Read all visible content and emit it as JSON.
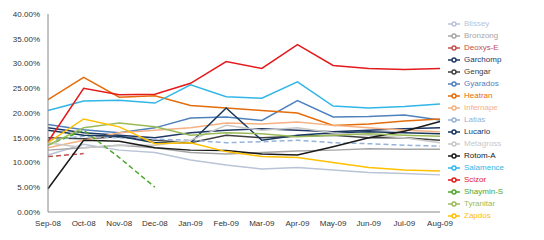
{
  "chart_data": {
    "type": "line",
    "categories": [
      "Sep-08",
      "Oct-08",
      "Nov-08",
      "Dec-08",
      "Jan-09",
      "Feb-09",
      "Mar-09",
      "Apr-09",
      "May-09",
      "Jun-09",
      "Jul-09",
      "Aug-09"
    ],
    "ylim": [
      0,
      40
    ],
    "yticks": [
      {
        "value": 0,
        "label": "0.00%"
      },
      {
        "value": 5,
        "label": "5.00%"
      },
      {
        "value": 10,
        "label": "10.00%"
      },
      {
        "value": 15,
        "label": "15.00%"
      },
      {
        "value": 20,
        "label": "20.00%"
      },
      {
        "value": 25,
        "label": "25.00%"
      },
      {
        "value": 30,
        "label": "30.00%"
      },
      {
        "value": 35,
        "label": "35.00%"
      },
      {
        "value": 40,
        "label": "40.00%"
      }
    ],
    "grid": false,
    "legend": "right",
    "series": [
      {
        "name": "Blissey",
        "color": "#b9c4d6",
        "values": [
          11.5,
          13.7,
          12.5,
          12,
          10.5,
          9.5,
          8.7,
          9,
          8.5,
          8,
          7.8,
          7.5
        ]
      },
      {
        "name": "Bronzong",
        "color": "#a6a6a6",
        "values": [
          12.5,
          13,
          13.5,
          13,
          12,
          11.7,
          12,
          12.3,
          12.5,
          12.8,
          12.7,
          12.7
        ]
      },
      {
        "name": "Deoxys-E",
        "color": "#c0504d",
        "line_style": "dashed",
        "values": [
          11.2,
          11.8,
          null,
          null,
          null,
          null,
          null,
          null,
          null,
          null,
          null,
          null
        ]
      },
      {
        "name": "Garchomp",
        "color": "#1f3864",
        "values": [
          17,
          16,
          15.5,
          15,
          16,
          16.5,
          16.8,
          16.5,
          16.2,
          16.5,
          16.8,
          17
        ]
      },
      {
        "name": "Gengar",
        "color": "#404040",
        "values": [
          15,
          14.8,
          15.2,
          14.5,
          14,
          15.5,
          15,
          15.3,
          15.5,
          15,
          15,
          14.5
        ]
      },
      {
        "name": "Gyarados",
        "color": "#4f81bd",
        "values": [
          17.7,
          16.6,
          16,
          17,
          19,
          19.2,
          18.5,
          22.5,
          19.2,
          19.3,
          19.6,
          18.6
        ]
      },
      {
        "name": "Heatran",
        "color": "#e46c0a",
        "values": [
          22.7,
          27.2,
          23.2,
          23.5,
          21.5,
          21,
          20.5,
          20,
          17.5,
          17.8,
          18.4,
          18.8
        ]
      },
      {
        "name": "Infernape",
        "color": "#f5b183",
        "values": [
          13,
          14.5,
          16,
          16.5,
          17,
          18,
          17.8,
          18.2,
          17.5,
          17,
          16.5,
          16.2
        ]
      },
      {
        "name": "Latias",
        "color": "#95b3d7",
        "line_style": "dashed",
        "values": [
          14.5,
          15.3,
          15,
          14.7,
          14.5,
          14,
          14.2,
          14.5,
          14,
          13.8,
          13.5,
          13.3
        ]
      },
      {
        "name": "Lucario",
        "color": "#17375e",
        "values": [
          16.5,
          15.5,
          15.3,
          14,
          14,
          21,
          14.5,
          15.5,
          16,
          16.2,
          16,
          15.8
        ]
      },
      {
        "name": "Metagross",
        "color": "#c8c8c8",
        "values": [
          14,
          13,
          13.5,
          13.5,
          14.5,
          17.5,
          16.5,
          17,
          16,
          15.5,
          15,
          14
        ]
      },
      {
        "name": "Rotom-A",
        "color": "#1a1a1a",
        "values": [
          4.7,
          14.5,
          14.3,
          13,
          12.5,
          12.4,
          11.7,
          11.5,
          13.2,
          15,
          16.3,
          18.3
        ]
      },
      {
        "name": "Salamence",
        "color": "#31b6e7",
        "values": [
          20.5,
          22.4,
          22.6,
          22,
          25.7,
          23.3,
          23,
          26.3,
          21.4,
          21,
          21.3,
          21.8
        ]
      },
      {
        "name": "Scizor",
        "color": "#e41a1c",
        "values": [
          14.2,
          25,
          23.7,
          23.8,
          26,
          30.4,
          29,
          33.8,
          29.6,
          29,
          28.8,
          29
        ]
      },
      {
        "name": "Shaymin-S",
        "color": "#4ea72e",
        "line_style": "dashed",
        "values": [
          13.5,
          16.5,
          11,
          5,
          null,
          null,
          null,
          null,
          null,
          null,
          null,
          null
        ]
      },
      {
        "name": "Tyranitar",
        "color": "#9bbb59",
        "values": [
          13.5,
          17,
          18,
          17.2,
          15.5,
          16,
          15.8,
          15.2,
          15.5,
          15.8,
          15.5,
          15.3
        ]
      },
      {
        "name": "Zapdos",
        "color": "#ffc000",
        "values": [
          14,
          18.8,
          17.2,
          13.8,
          14,
          12.2,
          11.2,
          11,
          10,
          9,
          8.5,
          8.3
        ]
      }
    ]
  }
}
